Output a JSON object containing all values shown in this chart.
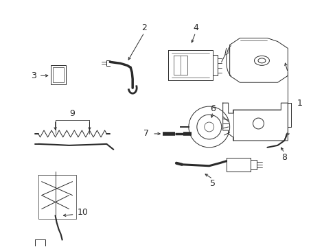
{
  "bg_color": "#ffffff",
  "line_color": "#2a2a2a",
  "lw": 0.7,
  "fig_w": 4.89,
  "fig_h": 3.6,
  "dpi": 100
}
